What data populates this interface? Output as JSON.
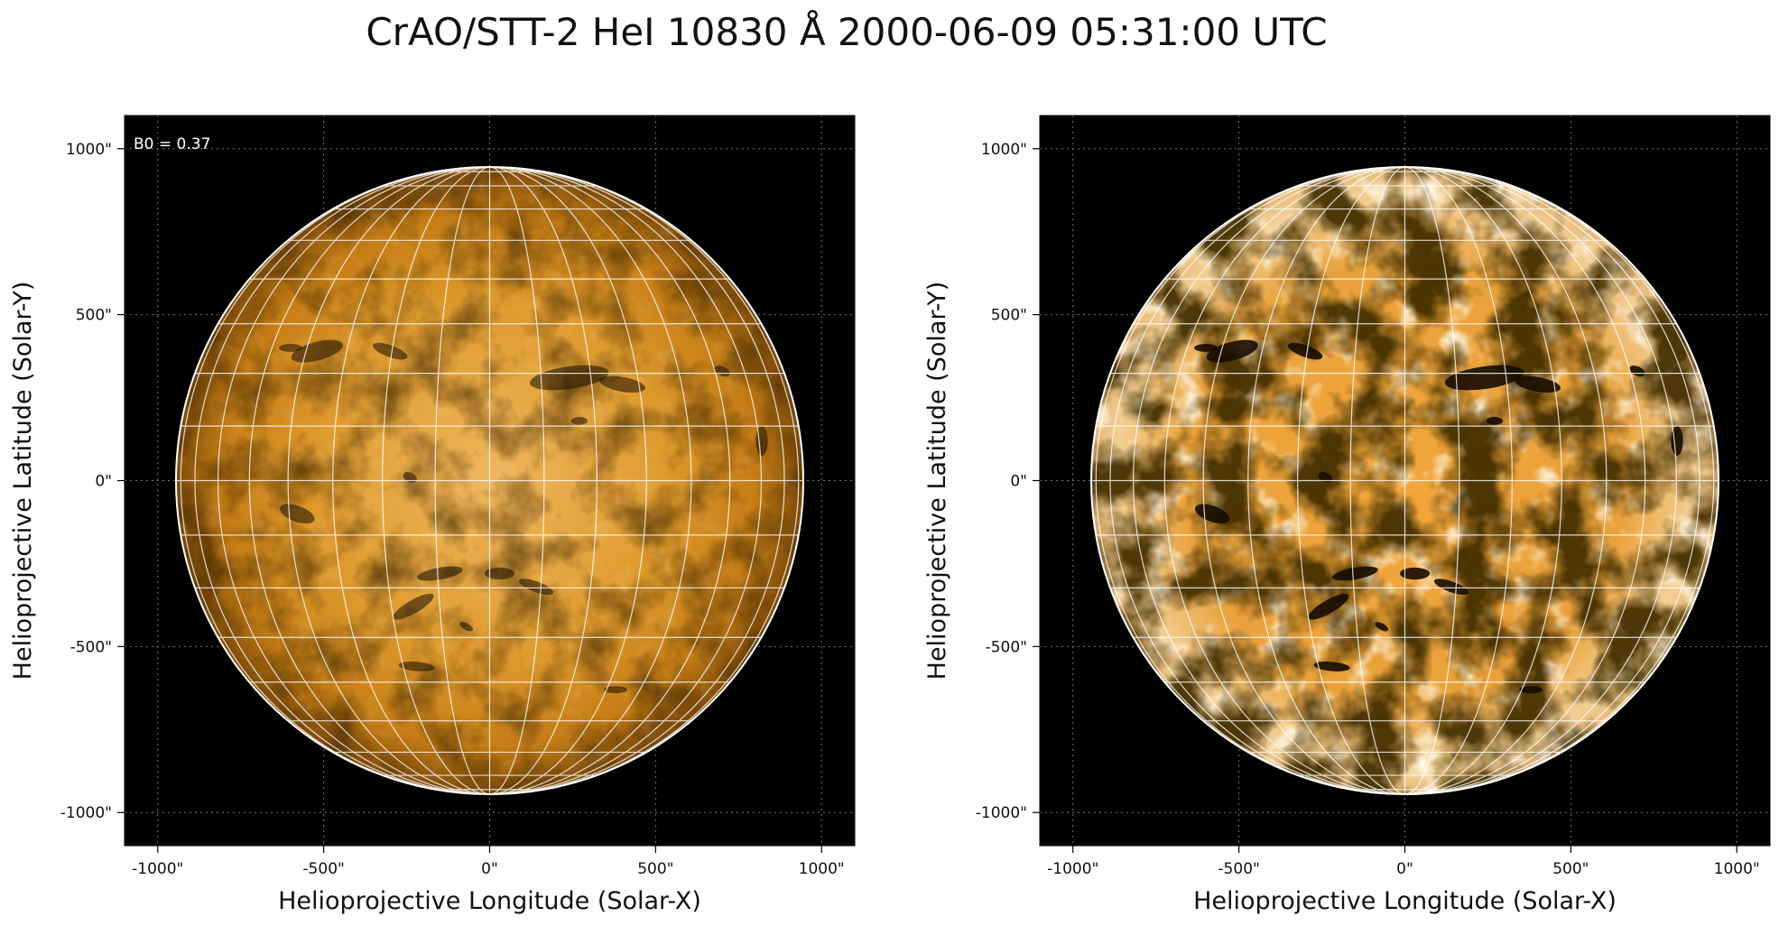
{
  "figure": {
    "title": "CrAO/STT-2 HeI 10830 Å 2000-06-09 05:31:00 UTC",
    "annotation": "B0 = 0.37",
    "colors": {
      "background": "#ffffff",
      "frame_fill": "#000000",
      "disk_mid": "#d48f1e",
      "disk_dark": "#160b00",
      "disk_bright": "#fff2d8",
      "limb_stroke": "#ffffff",
      "grid_stroke": "#ffffff"
    }
  },
  "panels": [
    {
      "id": "left",
      "xlabel": "Helioprojective Longitude (Solar-X)",
      "ylabel": "Helioprojective Latitude (Solar-Y)",
      "xticks": [
        "-1000\"",
        "-500\"",
        "0\"",
        "500\"",
        "1000\""
      ],
      "yticks": [
        "1000\"",
        "500\"",
        "0\"",
        "-500\"",
        "-1000\""
      ],
      "xlim": [
        -1100,
        1100
      ],
      "ylim": [
        -1100,
        1100
      ],
      "solar_radius_arcsec": 945,
      "colormap": "sdo-aia-1600 style orange",
      "contrast": "normal",
      "show_b0_label": true
    },
    {
      "id": "right",
      "xlabel": "Helioprojective Longitude (Solar-X)",
      "ylabel": "Helioprojective Latitude (Solar-Y)",
      "xticks": [
        "-1000\"",
        "-500\"",
        "0\"",
        "500\"",
        "1000\""
      ],
      "yticks": [
        "1000\"",
        "500\"",
        "0\"",
        "-500\"",
        "-1000\""
      ],
      "xlim": [
        -1100,
        1100
      ],
      "ylim": [
        -1100,
        1100
      ],
      "solar_radius_arcsec": 945,
      "colormap": "sdo-aia-1600 style orange",
      "contrast": "high",
      "show_b0_label": false
    }
  ]
}
